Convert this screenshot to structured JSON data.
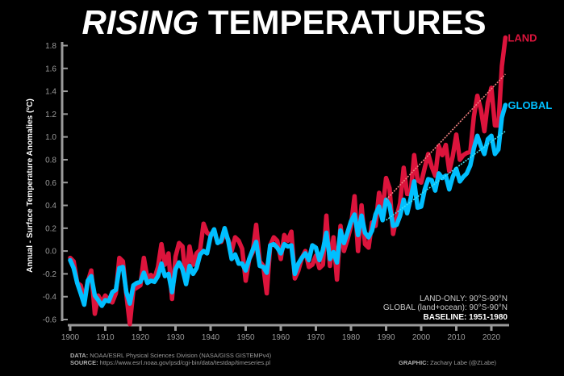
{
  "chart_data": {
    "type": "line",
    "title_em": "RISING",
    "title_rest": " TEMPERATURES",
    "ylabel": "Annual - Surface Temperature Anomalies (°C)",
    "xlabel": "",
    "xlim": [
      1900,
      2024
    ],
    "ylim": [
      -0.6,
      1.8
    ],
    "xticks": [
      1900,
      1910,
      1920,
      1930,
      1940,
      1950,
      1960,
      1970,
      1980,
      1990,
      2000,
      2010,
      2020
    ],
    "yticks": [
      "-0.6",
      "-0.4",
      "-0.2",
      "0.0",
      "0.2",
      "0.4",
      "0.6",
      "0.8",
      "1.0",
      "1.2",
      "1.4",
      "1.6",
      "1.8"
    ],
    "grid": false,
    "x_start": 1900,
    "series": [
      {
        "name": "LAND",
        "color": "#dc143c",
        "values": [
          -0.06,
          -0.09,
          -0.28,
          -0.3,
          -0.42,
          -0.27,
          -0.17,
          -0.55,
          -0.39,
          -0.45,
          -0.39,
          -0.43,
          -0.45,
          -0.37,
          -0.06,
          -0.09,
          -0.38,
          -0.64,
          -0.34,
          -0.32,
          -0.3,
          -0.06,
          -0.24,
          -0.21,
          -0.24,
          -0.14,
          0.06,
          -0.12,
          -0.02,
          -0.42,
          -0.05,
          0.07,
          0.04,
          -0.27,
          0.04,
          -0.12,
          -0.02,
          0.01,
          0.24,
          0.16,
          0.14,
          0.17,
          0.08,
          0.08,
          0.16,
          0.1,
          0.0,
          0.12,
          0.09,
          0.02,
          -0.26,
          -0.07,
          -0.01,
          0.23,
          -0.09,
          -0.13,
          -0.37,
          0.05,
          0.12,
          0.09,
          -0.07,
          0.14,
          0.09,
          0.17,
          -0.24,
          -0.17,
          -0.06,
          0.0,
          -0.14,
          -0.12,
          -0.04,
          -0.15,
          -0.12,
          0.31,
          -0.13,
          0.12,
          -0.25,
          0.22,
          0.0,
          0.1,
          0.22,
          0.48,
          0.0,
          0.4,
          0.06,
          0.03,
          0.25,
          0.22,
          0.51,
          0.36,
          0.64,
          0.55,
          0.15,
          0.3,
          0.42,
          0.73,
          0.5,
          0.5,
          0.84,
          0.62,
          0.6,
          0.73,
          0.85,
          0.74,
          0.66,
          0.92,
          0.84,
          0.93,
          0.7,
          0.83,
          1.02,
          0.8,
          0.84,
          0.86,
          0.87,
          1.18,
          1.36,
          1.24,
          1.05,
          1.3,
          1.43,
          1.1,
          1.1,
          1.62,
          1.87
        ],
        "trend": {
          "x": [
            1990,
            2024
          ],
          "y": [
            0.45,
            1.55
          ],
          "color": "#f08080"
        }
      },
      {
        "name": "GLOBAL",
        "color": "#00bfff",
        "values": [
          -0.08,
          -0.15,
          -0.28,
          -0.37,
          -0.47,
          -0.26,
          -0.22,
          -0.39,
          -0.43,
          -0.48,
          -0.43,
          -0.44,
          -0.36,
          -0.34,
          -0.15,
          -0.14,
          -0.36,
          -0.46,
          -0.3,
          -0.28,
          -0.27,
          -0.19,
          -0.28,
          -0.26,
          -0.27,
          -0.22,
          -0.11,
          -0.22,
          -0.2,
          -0.36,
          -0.16,
          -0.1,
          -0.16,
          -0.29,
          -0.13,
          -0.2,
          -0.15,
          -0.03,
          0.0,
          -0.02,
          0.13,
          0.19,
          0.07,
          0.09,
          0.2,
          0.09,
          -0.07,
          -0.03,
          -0.11,
          -0.11,
          -0.17,
          -0.07,
          0.01,
          0.08,
          -0.13,
          -0.14,
          -0.19,
          0.05,
          0.06,
          0.03,
          -0.02,
          0.06,
          0.04,
          0.05,
          -0.2,
          -0.11,
          -0.06,
          -0.02,
          -0.08,
          0.05,
          0.03,
          -0.08,
          0.01,
          0.16,
          -0.07,
          -0.01,
          -0.1,
          0.18,
          0.07,
          0.16,
          0.26,
          0.32,
          0.14,
          0.31,
          0.16,
          0.12,
          0.18,
          0.32,
          0.39,
          0.27,
          0.45,
          0.4,
          0.22,
          0.23,
          0.31,
          0.45,
          0.33,
          0.46,
          0.61,
          0.38,
          0.39,
          0.54,
          0.63,
          0.62,
          0.53,
          0.68,
          0.64,
          0.66,
          0.54,
          0.65,
          0.72,
          0.61,
          0.65,
          0.68,
          0.75,
          0.9,
          1.01,
          0.92,
          0.85,
          0.98,
          1.01,
          0.85,
          0.89,
          1.17,
          1.28
        ],
        "trend": {
          "x": [
            1990,
            2024
          ],
          "y": [
            0.27,
            1.05
          ],
          "color": "#40e0f0"
        }
      }
    ],
    "annotations": {
      "land_only": "LAND-ONLY: 90°S-90°N",
      "global": "GLOBAL (land+ocean): 90°S-90°N",
      "baseline": "BASELINE: 1951-1980"
    }
  },
  "footer": {
    "data_label": "DATA:",
    "data_text": " NOAA/ESRL Physical Sciences Division (NASA/GISS GISTEMPv4)",
    "source_label": "SOURCE:",
    "source_text": " https://www.esrl.noaa.gov/psd/cgi-bin/data/testdap/timeseries.pl",
    "graphic_label": "GRAPHIC:",
    "graphic_text": " Zachary Labe (@ZLabe)"
  }
}
